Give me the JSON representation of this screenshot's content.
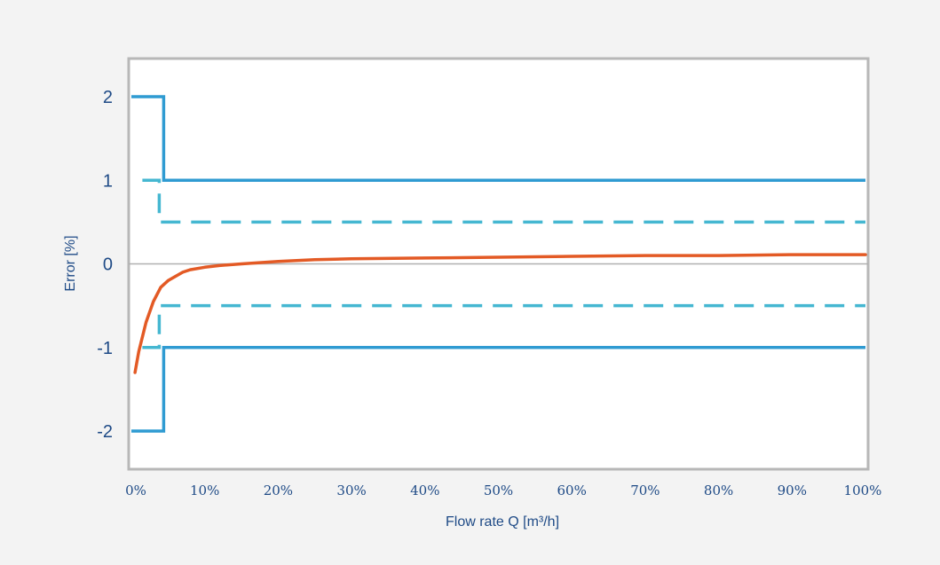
{
  "chart_data": {
    "type": "line",
    "title": "",
    "xlabel": "Flow rate Q [m³/h]",
    "ylabel": "Error [%]",
    "x_unit": "%",
    "xlim": [
      0,
      100
    ],
    "ylim": [
      -2.5,
      2.5
    ],
    "x_ticks": [
      "0%",
      "10%",
      "20%",
      "30%",
      "40%",
      "50%",
      "60%",
      "70%",
      "80%",
      "90%",
      "100%"
    ],
    "x_tick_values": [
      0,
      10,
      20,
      30,
      40,
      50,
      60,
      70,
      80,
      90,
      100
    ],
    "y_ticks": [
      "2",
      "1",
      "0",
      "-1",
      "-2"
    ],
    "y_tick_values": [
      2,
      1,
      0,
      -1,
      -2
    ],
    "grid": false,
    "zero_line": true,
    "colors": {
      "frame": "#b7b7b7",
      "plot_bg": "#ffffff",
      "outer_bg": "#f3f3f3",
      "solid_limit": "#2f9bd2",
      "dashed_limit": "#45b7d1",
      "error_curve": "#e35a25",
      "text": "#1e4a86",
      "zero_line": "#b0b0b0"
    },
    "series": [
      {
        "style": "solid",
        "color": "#2f9bd2",
        "points": [
          [
            0,
            2
          ],
          [
            4.4,
            2
          ],
          [
            4.4,
            1
          ],
          [
            100,
            1
          ]
        ]
      },
      {
        "style": "solid",
        "color": "#2f9bd2",
        "points": [
          [
            0,
            -2
          ],
          [
            4.4,
            -2
          ],
          [
            4.4,
            -1
          ],
          [
            100,
            -1
          ]
        ]
      },
      {
        "style": "dashed",
        "color": "#45b7d1",
        "points": [
          [
            1.5,
            1
          ],
          [
            3.8,
            1
          ],
          [
            3.8,
            0.5
          ],
          [
            100,
            0.5
          ]
        ]
      },
      {
        "style": "dashed",
        "color": "#45b7d1",
        "points": [
          [
            1.5,
            -1
          ],
          [
            3.8,
            -1
          ],
          [
            3.8,
            -0.5
          ],
          [
            100,
            -0.5
          ]
        ]
      },
      {
        "style": "solid",
        "color": "#e35a25",
        "points": [
          [
            0.5,
            -1.3
          ],
          [
            1,
            -1.05
          ],
          [
            2,
            -0.7
          ],
          [
            3,
            -0.45
          ],
          [
            4,
            -0.28
          ],
          [
            5,
            -0.2
          ],
          [
            6,
            -0.15
          ],
          [
            7,
            -0.1
          ],
          [
            8,
            -0.07
          ],
          [
            10,
            -0.04
          ],
          [
            12,
            -0.02
          ],
          [
            15,
            0.0
          ],
          [
            20,
            0.03
          ],
          [
            25,
            0.05
          ],
          [
            30,
            0.06
          ],
          [
            40,
            0.07
          ],
          [
            50,
            0.08
          ],
          [
            60,
            0.09
          ],
          [
            70,
            0.1
          ],
          [
            80,
            0.1
          ],
          [
            90,
            0.11
          ],
          [
            100,
            0.11
          ]
        ]
      }
    ]
  }
}
